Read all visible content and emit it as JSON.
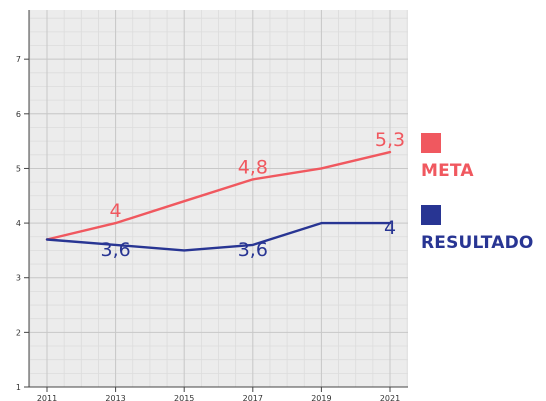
{
  "chart_data": {
    "type": "line",
    "x": [
      2011,
      2013,
      2015,
      2017,
      2019,
      2021
    ],
    "x_tick_labels": [
      "2011",
      "2013",
      "2015",
      "2017",
      "2019",
      "2021"
    ],
    "y_tick_labels": [
      "1",
      "2",
      "3",
      "4",
      "5",
      "6",
      "7"
    ],
    "xlim": [
      2011,
      2021
    ],
    "ylim": [
      1,
      7.9
    ],
    "grid": true,
    "legend_placement": "right",
    "series": [
      {
        "name": "META",
        "color": "#f0585f",
        "x": [
          2011,
          2013,
          2015,
          2017,
          2019,
          2021
        ],
        "values": [
          3.7,
          4.0,
          4.4,
          4.8,
          5.0,
          5.3
        ],
        "labels": [
          {
            "x": 2013,
            "y": 4.0,
            "text": "4"
          },
          {
            "x": 2017,
            "y": 4.8,
            "text": "4,8"
          },
          {
            "x": 2021,
            "y": 5.3,
            "text": "5,3"
          }
        ]
      },
      {
        "name": "RESULTADO",
        "color": "#283593",
        "x": [
          2011,
          2013,
          2015,
          2017,
          2019,
          2021
        ],
        "values": [
          3.7,
          3.6,
          3.5,
          3.6,
          4.0,
          4.0
        ],
        "labels": [
          {
            "x": 2013,
            "y": 3.6,
            "text": "3,6"
          },
          {
            "x": 2017,
            "y": 3.6,
            "text": "3,6"
          },
          {
            "x": 2021,
            "y": 4.0,
            "text": "4"
          }
        ]
      }
    ]
  },
  "legend": {
    "meta": {
      "label": "META",
      "color": "#f0585f"
    },
    "resultado": {
      "label": "RESULTADO",
      "color": "#283593"
    }
  }
}
